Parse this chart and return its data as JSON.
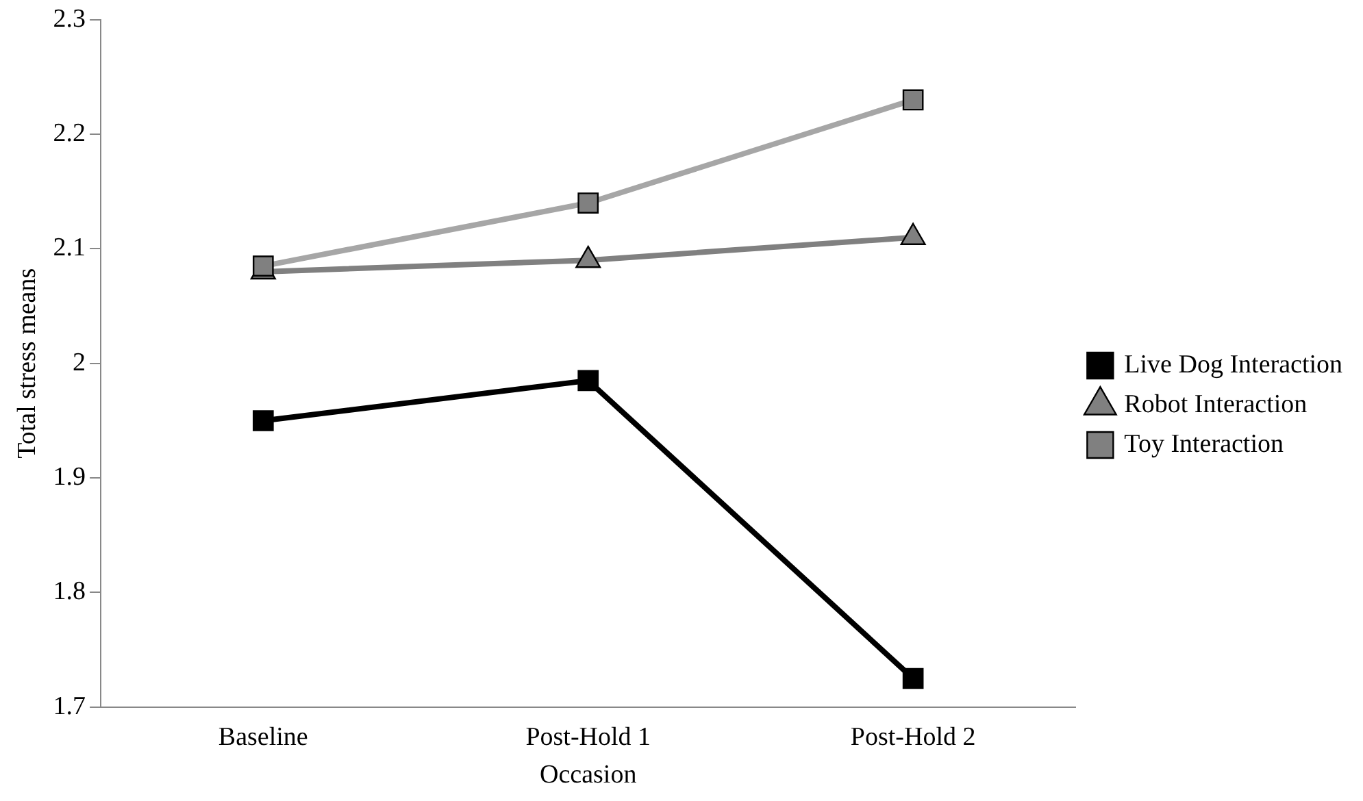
{
  "chart_data": {
    "type": "line",
    "xlabel": "Occasion",
    "ylabel": "Total stress means",
    "categories": [
      "Baseline",
      "Post-Hold 1",
      "Post-Hold 2"
    ],
    "series": [
      {
        "name": "Live Dog Interaction",
        "color": "#000000",
        "marker": "square",
        "values": [
          1.95,
          1.985,
          1.725
        ]
      },
      {
        "name": "Robot Interaction",
        "color": "#808080",
        "marker": "triangle",
        "values": [
          2.08,
          2.09,
          2.11
        ]
      },
      {
        "name": "Toy Interaction",
        "color": "#a6a6a6",
        "marker": "square",
        "values": [
          2.085,
          2.14,
          2.23
        ]
      }
    ],
    "ylim": [
      1.7,
      2.3
    ],
    "yticks": [
      1.7,
      1.8,
      1.9,
      2,
      2.1,
      2.2,
      2.3
    ],
    "grid": false,
    "legend": "right",
    "line_style": "solid"
  }
}
